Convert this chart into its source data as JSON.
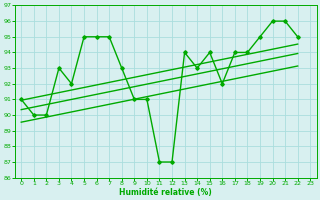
{
  "x": [
    0,
    1,
    2,
    3,
    4,
    5,
    6,
    7,
    8,
    9,
    10,
    11,
    12,
    13,
    14,
    15,
    16,
    17,
    18,
    19,
    20,
    21,
    22,
    23
  ],
  "y_main": [
    91,
    90,
    90,
    93,
    92,
    95,
    95,
    95,
    93,
    91,
    91,
    87,
    87,
    94,
    93,
    94,
    92,
    94,
    94,
    95,
    96,
    96,
    95,
    null
  ],
  "xlabel": "Humidité relative (%)",
  "xlim": [
    -0.5,
    23.5
  ],
  "ylim": [
    86,
    97
  ],
  "yticks": [
    86,
    87,
    88,
    89,
    90,
    91,
    92,
    93,
    94,
    95,
    96,
    97
  ],
  "xticks": [
    0,
    1,
    2,
    3,
    4,
    5,
    6,
    7,
    8,
    9,
    10,
    11,
    12,
    13,
    14,
    15,
    16,
    17,
    18,
    19,
    20,
    21,
    22,
    23
  ],
  "trend_offsets": [
    0.0,
    -0.6,
    -1.4
  ],
  "line_color": "#00aa00",
  "bg_color": "#d8f0f0",
  "grid_color": "#aadddd",
  "tick_color": "#00aa00",
  "label_color": "#00aa00",
  "marker": "D",
  "marker_size": 1.8,
  "line_width": 1.0
}
